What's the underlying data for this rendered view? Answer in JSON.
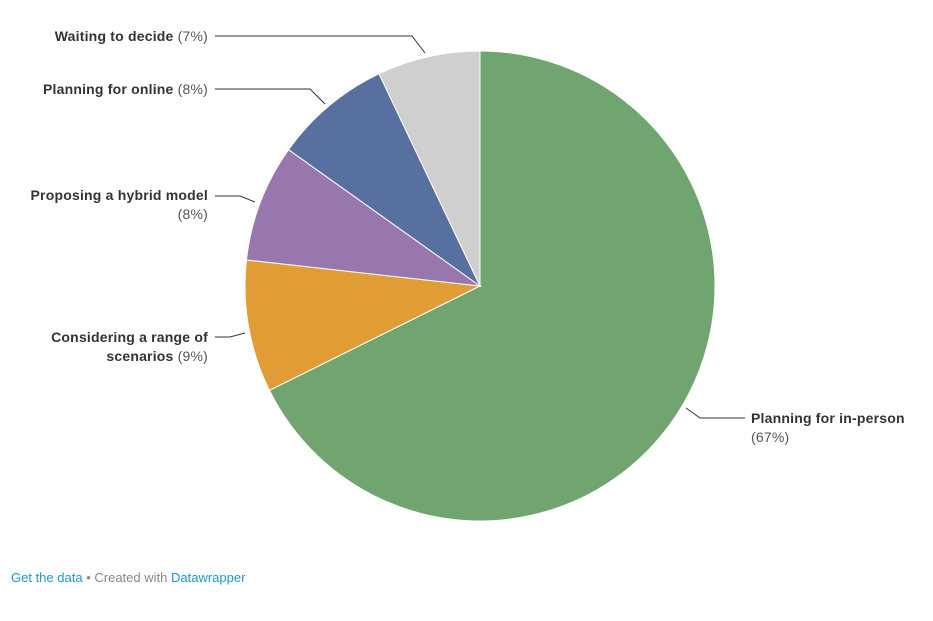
{
  "chart_data": {
    "type": "pie",
    "categories": [
      "Planning for in-person",
      "Considering a range of scenarios",
      "Proposing a hybrid model",
      "Planning for online",
      "Waiting to decide"
    ],
    "values": [
      67,
      9,
      8,
      8,
      7
    ],
    "value_labels": [
      "(67%)",
      "(9%)",
      "(8%)",
      "(8%)",
      "(7%)"
    ],
    "colors": [
      "#70a56f",
      "#e09d35",
      "#9877af",
      "#5870a0",
      "#cfcfcf"
    ]
  },
  "footer": {
    "get_data": "Get the data",
    "separator": "•",
    "created_with": "Created with",
    "tool": "Datawrapper"
  }
}
